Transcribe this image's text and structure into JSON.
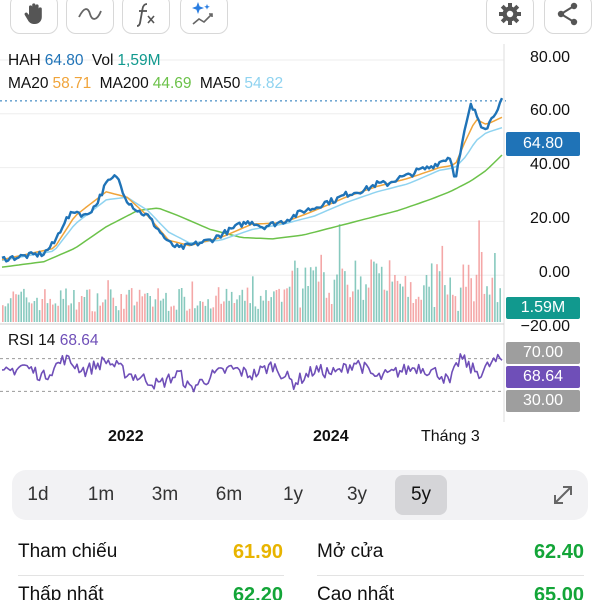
{
  "toolbar": {
    "tools": [
      "hand-icon",
      "wave-icon",
      "function-icon",
      "sparkle-chart-icon"
    ],
    "actions": [
      "gear-icon",
      "share-icon"
    ]
  },
  "legend": {
    "symbol": "HAH",
    "price": "64.80",
    "vol_label": "Vol",
    "vol": "1,59M",
    "ma20_label": "MA20",
    "ma20": "58.71",
    "ma200_label": "MA200",
    "ma200": "44.69",
    "ma50_label": "MA50",
    "ma50": "54.82"
  },
  "y_axis": [
    "80.00",
    "60.00",
    "40.00",
    "20.00",
    "0.00",
    "−20.00"
  ],
  "price_tag": "64.80",
  "volume_tag": "1.59M",
  "rsi": {
    "label": "RSI 14",
    "value": "68.64",
    "upper": "70.00",
    "lower": "30.00"
  },
  "x_axis": [
    "2022",
    "2024",
    "Tháng 3"
  ],
  "periods": [
    "1d",
    "1m",
    "3m",
    "6m",
    "1y",
    "3y",
    "5y"
  ],
  "active_period": "5y",
  "stats": {
    "ref_label": "Tham chiếu",
    "ref_value": "61.90",
    "open_label": "Mở cửa",
    "open_value": "62.40",
    "low_label": "Thấp nhất",
    "low_value": "62.20",
    "high_label": "Cao nhất",
    "high_value": "65.00"
  },
  "colors": {
    "price": "#1f73b7",
    "ma20": "#f0a43a",
    "ma50": "#8fd3f0",
    "ma200": "#6cc24a",
    "rsi": "#6f4fb8",
    "volume_up": "#5fb7a8",
    "volume_down": "#f08a8a",
    "up_value": "#13a538",
    "ref_value": "#e8b400"
  },
  "chart_data": {
    "type": "line",
    "price_scale": [
      -20,
      80
    ],
    "series": [
      {
        "name": "HAH",
        "points": [
          [
            0,
            6
          ],
          [
            4,
            7
          ],
          [
            8,
            8
          ],
          [
            10,
            12
          ],
          [
            12,
            20
          ],
          [
            14,
            24
          ],
          [
            16,
            22
          ],
          [
            18,
            26
          ],
          [
            20,
            34
          ],
          [
            22,
            37
          ],
          [
            24,
            28
          ],
          [
            26,
            24
          ],
          [
            28,
            22
          ],
          [
            30,
            17
          ],
          [
            32,
            12
          ],
          [
            34,
            10
          ],
          [
            36,
            11
          ],
          [
            38,
            12
          ],
          [
            40,
            13
          ],
          [
            42,
            15
          ],
          [
            44,
            17
          ],
          [
            46,
            19
          ],
          [
            48,
            20
          ],
          [
            50,
            18
          ],
          [
            52,
            19
          ],
          [
            54,
            20
          ],
          [
            56,
            22
          ],
          [
            58,
            24
          ],
          [
            60,
            25
          ],
          [
            62,
            27
          ],
          [
            64,
            28
          ],
          [
            66,
            30
          ],
          [
            68,
            31
          ],
          [
            70,
            32
          ],
          [
            72,
            34
          ],
          [
            74,
            34
          ],
          [
            76,
            36
          ],
          [
            78,
            37
          ],
          [
            80,
            39
          ],
          [
            82,
            40
          ],
          [
            84,
            42
          ],
          [
            86,
            44
          ],
          [
            87,
            36
          ],
          [
            88,
            45
          ],
          [
            89,
            55
          ],
          [
            90,
            63
          ],
          [
            91,
            60
          ],
          [
            92,
            56
          ],
          [
            93,
            55
          ],
          [
            94,
            58
          ],
          [
            95,
            62
          ],
          [
            96,
            64.8
          ]
        ]
      },
      {
        "name": "MA20",
        "points": [
          [
            0,
            5.8
          ],
          [
            10,
            10
          ],
          [
            14,
            22
          ],
          [
            20,
            31
          ],
          [
            24,
            29
          ],
          [
            28,
            22
          ],
          [
            32,
            13
          ],
          [
            36,
            11
          ],
          [
            42,
            14
          ],
          [
            48,
            19
          ],
          [
            54,
            19.5
          ],
          [
            60,
            24
          ],
          [
            66,
            29
          ],
          [
            72,
            33
          ],
          [
            78,
            36
          ],
          [
            84,
            40
          ],
          [
            87,
            41
          ],
          [
            89,
            50
          ],
          [
            91,
            58
          ],
          [
            93,
            56
          ],
          [
            96,
            58.71
          ]
        ]
      },
      {
        "name": "MA50",
        "points": [
          [
            0,
            5.5
          ],
          [
            10,
            9
          ],
          [
            14,
            19
          ],
          [
            20,
            28
          ],
          [
            24,
            29
          ],
          [
            28,
            24
          ],
          [
            32,
            16
          ],
          [
            36,
            12
          ],
          [
            42,
            13
          ],
          [
            48,
            17
          ],
          [
            54,
            19
          ],
          [
            60,
            22
          ],
          [
            66,
            27
          ],
          [
            72,
            31
          ],
          [
            78,
            34
          ],
          [
            84,
            39
          ],
          [
            87,
            40
          ],
          [
            89,
            44
          ],
          [
            91,
            50
          ],
          [
            93,
            53
          ],
          [
            96,
            54.82
          ]
        ]
      },
      {
        "name": "MA200",
        "points": [
          [
            0,
            3
          ],
          [
            8,
            5
          ],
          [
            14,
            10
          ],
          [
            20,
            18
          ],
          [
            26,
            24
          ],
          [
            30,
            25
          ],
          [
            34,
            22
          ],
          [
            40,
            17
          ],
          [
            46,
            14
          ],
          [
            52,
            13.5
          ],
          [
            58,
            15
          ],
          [
            64,
            18
          ],
          [
            70,
            21
          ],
          [
            76,
            24
          ],
          [
            82,
            28
          ],
          [
            86,
            31
          ],
          [
            90,
            35
          ],
          [
            93,
            39
          ],
          [
            96,
            44.69
          ]
        ]
      },
      {
        "name": "RSI 14",
        "points": [
          [
            0,
            50
          ],
          [
            4,
            62
          ],
          [
            8,
            48
          ],
          [
            12,
            70
          ],
          [
            16,
            55
          ],
          [
            20,
            68
          ],
          [
            24,
            52
          ],
          [
            28,
            44
          ],
          [
            30,
            38
          ],
          [
            34,
            52
          ],
          [
            36,
            33
          ],
          [
            40,
            48
          ],
          [
            44,
            58
          ],
          [
            48,
            50
          ],
          [
            52,
            62
          ],
          [
            56,
            40
          ],
          [
            60,
            56
          ],
          [
            64,
            52
          ],
          [
            68,
            66
          ],
          [
            72,
            46
          ],
          [
            76,
            54
          ],
          [
            80,
            60
          ],
          [
            84,
            52
          ],
          [
            86,
            40
          ],
          [
            88,
            72
          ],
          [
            90,
            58
          ],
          [
            92,
            52
          ],
          [
            94,
            65
          ],
          [
            96,
            68.64
          ]
        ]
      }
    ],
    "rsi_levels": [
      30,
      70
    ],
    "volume_last": "1.59M"
  }
}
